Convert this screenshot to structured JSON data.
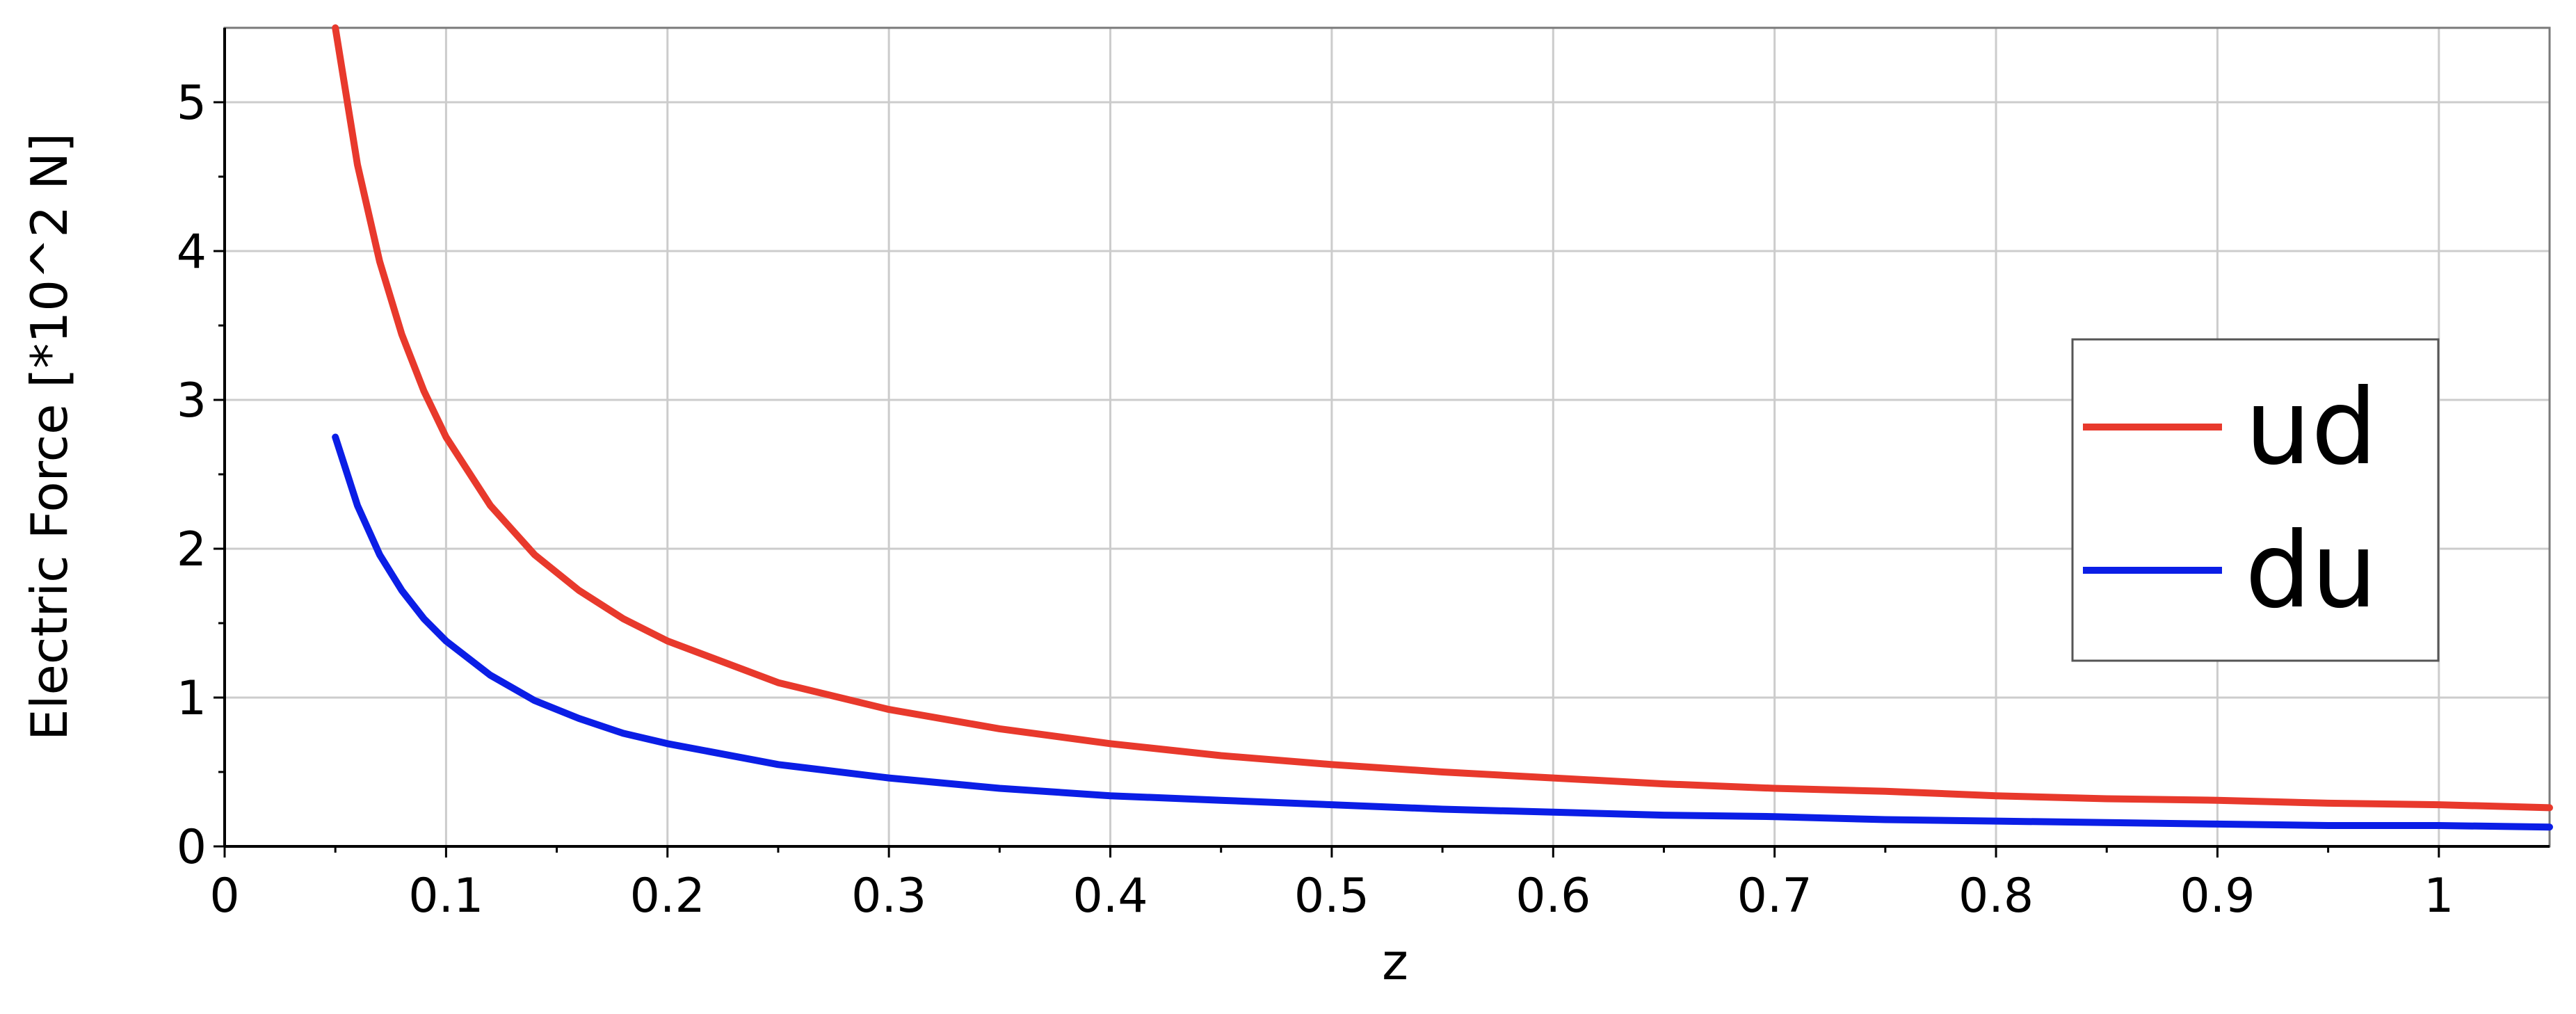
{
  "chart_data": {
    "type": "line",
    "xlabel": "z",
    "ylabel": "Electric Force [*10^2 N]",
    "xlim": [
      0,
      1.05
    ],
    "ylim": [
      0,
      5.5
    ],
    "xticks": [
      0,
      0.1,
      0.2,
      0.3,
      0.4,
      0.5,
      0.6,
      0.7,
      0.8,
      0.9,
      1
    ],
    "xtick_labels": [
      "0",
      "0.1",
      "0.2",
      "0.3",
      "0.4",
      "0.5",
      "0.6",
      "0.7",
      "0.8",
      "0.9",
      "1"
    ],
    "yticks": [
      0,
      1,
      2,
      3,
      4,
      5
    ],
    "ytick_labels": [
      "0",
      "1",
      "2",
      "3",
      "4",
      "5"
    ],
    "grid": true,
    "legend_position": "right",
    "series": [
      {
        "name": "ud",
        "color": "#e8392c",
        "x": [
          0.05,
          0.06,
          0.07,
          0.08,
          0.09,
          0.1,
          0.12,
          0.14,
          0.16,
          0.18,
          0.2,
          0.25,
          0.3,
          0.35,
          0.4,
          0.45,
          0.5,
          0.55,
          0.6,
          0.65,
          0.7,
          0.75,
          0.8,
          0.85,
          0.9,
          0.95,
          1.0,
          1.05
        ],
        "y": [
          5.5,
          4.58,
          3.93,
          3.44,
          3.06,
          2.75,
          2.29,
          1.96,
          1.72,
          1.53,
          1.38,
          1.1,
          0.92,
          0.79,
          0.69,
          0.61,
          0.55,
          0.5,
          0.46,
          0.42,
          0.39,
          0.37,
          0.34,
          0.32,
          0.31,
          0.29,
          0.28,
          0.26
        ]
      },
      {
        "name": "du",
        "color": "#0b1ee6",
        "x": [
          0.05,
          0.06,
          0.07,
          0.08,
          0.09,
          0.1,
          0.12,
          0.14,
          0.16,
          0.18,
          0.2,
          0.25,
          0.3,
          0.35,
          0.4,
          0.45,
          0.5,
          0.55,
          0.6,
          0.65,
          0.7,
          0.75,
          0.8,
          0.85,
          0.9,
          0.95,
          1.0,
          1.05
        ],
        "y": [
          2.75,
          2.29,
          1.96,
          1.72,
          1.53,
          1.38,
          1.15,
          0.98,
          0.86,
          0.76,
          0.69,
          0.55,
          0.46,
          0.39,
          0.34,
          0.31,
          0.28,
          0.25,
          0.23,
          0.21,
          0.2,
          0.18,
          0.17,
          0.16,
          0.15,
          0.14,
          0.14,
          0.13
        ]
      }
    ]
  }
}
